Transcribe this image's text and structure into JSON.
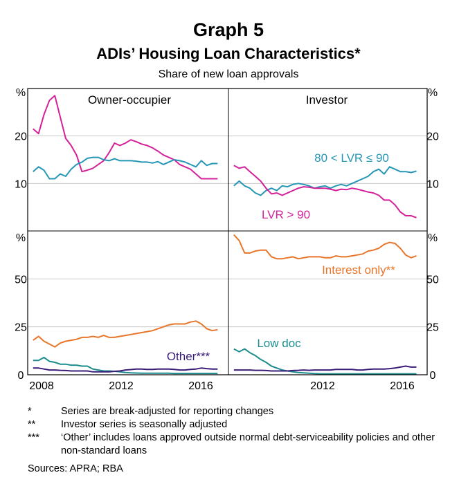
{
  "title": "Graph 5",
  "subtitle": "ADIs’ Housing Loan Characteristics*",
  "subsubtitle": "Share of new loan approvals",
  "unit": "%",
  "x_ticks": [
    "2008",
    "2012",
    "2016"
  ],
  "colors": {
    "magenta": "#d4219a",
    "teal": "#2596b5",
    "orange": "#e8752a",
    "purple": "#3a1c78",
    "darkteal": "#1c8c8c"
  },
  "notes": [
    {
      "mark": "*",
      "text": "Series are break-adjusted for reporting changes"
    },
    {
      "mark": "**",
      "text": "Investor series is seasonally adjusted"
    },
    {
      "mark": "***",
      "text": "‘Other’ includes loans approved outside normal debt-serviceability policies and other non-standard loans"
    }
  ],
  "sources": "Sources:  APRA; RBA",
  "chart_data": [
    {
      "type": "line",
      "title": "Owner-occupier",
      "ylim": [
        0,
        30
      ],
      "y_ticks": [
        10,
        20
      ],
      "x": [
        2007.75,
        2008.0,
        2008.25,
        2008.5,
        2008.75,
        2009.0,
        2009.25,
        2009.5,
        2009.75,
        2010.0,
        2010.25,
        2010.5,
        2010.75,
        2011.0,
        2011.25,
        2011.5,
        2011.75,
        2012.0,
        2012.25,
        2012.5,
        2012.75,
        2013.0,
        2013.25,
        2013.5,
        2013.75,
        2014.0,
        2014.25,
        2014.5,
        2014.75,
        2015.0,
        2015.25,
        2015.5,
        2015.75,
        2016.0,
        2016.25
      ],
      "series": [
        {
          "name": "LVR > 90",
          "color": "#d4219a",
          "values": [
            21.5,
            20.5,
            24.5,
            27.5,
            28.5,
            24.0,
            19.5,
            18.0,
            16.0,
            12.5,
            12.8,
            13.2,
            14.0,
            14.8,
            16.5,
            18.5,
            18.0,
            18.5,
            19.2,
            18.8,
            18.3,
            18.0,
            17.5,
            16.8,
            16.0,
            15.5,
            15.0,
            14.0,
            13.5,
            13.0,
            12.0,
            11.0,
            11.0,
            11.0,
            11.0
          ]
        },
        {
          "name": "80 < LVR ≤ 90",
          "color": "#2596b5",
          "values": [
            12.5,
            13.5,
            12.8,
            11.0,
            11.0,
            12.0,
            11.5,
            13.0,
            14.0,
            14.5,
            15.3,
            15.5,
            15.5,
            15.0,
            14.8,
            15.2,
            14.8,
            14.8,
            14.8,
            14.7,
            14.5,
            14.5,
            14.3,
            14.6,
            14.0,
            14.5,
            15.0,
            14.8,
            14.5,
            14.0,
            13.5,
            14.8,
            13.8,
            14.2,
            14.2
          ]
        }
      ],
      "annotations": []
    },
    {
      "type": "line",
      "title": "Investor",
      "ylim": [
        0,
        30
      ],
      "y_ticks": [
        10,
        20
      ],
      "x": [
        2007.75,
        2008.0,
        2008.25,
        2008.5,
        2008.75,
        2009.0,
        2009.25,
        2009.5,
        2009.75,
        2010.0,
        2010.25,
        2010.5,
        2010.75,
        2011.0,
        2011.25,
        2011.5,
        2011.75,
        2012.0,
        2012.25,
        2012.5,
        2012.75,
        2013.0,
        2013.25,
        2013.5,
        2013.75,
        2014.0,
        2014.25,
        2014.5,
        2014.75,
        2015.0,
        2015.25,
        2015.5,
        2015.75,
        2016.0,
        2016.25
      ],
      "series": [
        {
          "name": "80 < LVR ≤ 90",
          "color": "#2596b5",
          "values": [
            9.5,
            10.5,
            9.5,
            9.0,
            8.0,
            7.5,
            8.5,
            9.0,
            8.5,
            9.5,
            9.3,
            9.8,
            10.0,
            9.8,
            9.5,
            9.0,
            9.3,
            9.5,
            9.0,
            9.5,
            9.8,
            9.5,
            10.0,
            10.5,
            11.0,
            11.5,
            12.5,
            13.0,
            12.0,
            13.5,
            13.0,
            12.5,
            12.5,
            12.3,
            12.6
          ]
        },
        {
          "name": "LVR > 90",
          "color": "#d4219a",
          "values": [
            13.8,
            13.2,
            13.5,
            12.5,
            11.5,
            10.5,
            9.0,
            7.8,
            8.0,
            7.5,
            8.0,
            8.5,
            9.0,
            9.3,
            9.2,
            9.0,
            9.0,
            9.0,
            8.8,
            8.5,
            8.8,
            8.7,
            9.0,
            8.8,
            8.5,
            8.2,
            8.0,
            7.5,
            6.5,
            6.5,
            5.5,
            4.0,
            3.2,
            3.2,
            2.8
          ]
        }
      ],
      "annotations": [
        "80 < LVR ≤ 90",
        "LVR > 90"
      ]
    },
    {
      "type": "line",
      "title": "",
      "ylim": [
        0,
        75
      ],
      "y_ticks": [
        0,
        25,
        50
      ],
      "x": [
        2007.75,
        2008.0,
        2008.25,
        2008.5,
        2008.75,
        2009.0,
        2009.25,
        2009.5,
        2009.75,
        2010.0,
        2010.25,
        2010.5,
        2010.75,
        2011.0,
        2011.25,
        2011.5,
        2011.75,
        2012.0,
        2012.25,
        2012.5,
        2012.75,
        2013.0,
        2013.25,
        2013.5,
        2013.75,
        2014.0,
        2014.25,
        2014.5,
        2014.75,
        2015.0,
        2015.25,
        2015.5,
        2015.75,
        2016.0,
        2016.25
      ],
      "series": [
        {
          "name": "Interest only**",
          "color": "#e8752a",
          "values": [
            18,
            20,
            17.5,
            16,
            14.5,
            16.5,
            17.5,
            18,
            18.5,
            19.5,
            19.5,
            20,
            19.5,
            20.5,
            19.5,
            19.5,
            20,
            20.5,
            21,
            21.5,
            22,
            22.5,
            23,
            24,
            25,
            26,
            26.5,
            26.5,
            26.5,
            27.5,
            28,
            26.5,
            24,
            23,
            23.5
          ]
        },
        {
          "name": "Low doc",
          "color": "#1c8c8c",
          "values": [
            7.5,
            7.5,
            9,
            7,
            6.5,
            5.5,
            5.5,
            5,
            5,
            4.5,
            4.5,
            3,
            2.5,
            2,
            2,
            1.8,
            1.5,
            1.2,
            1,
            0.9,
            0.8,
            0.8,
            0.8,
            0.8,
            0.8,
            0.8,
            0.7,
            0.7,
            0.7,
            0.7,
            0.7,
            0.7,
            0.7,
            0.7,
            0.7
          ]
        },
        {
          "name": "Other***",
          "color": "#3a1c78",
          "values": [
            3.5,
            3.5,
            3,
            2.5,
            2.5,
            2.3,
            2.2,
            2,
            2,
            2,
            2,
            1.5,
            1.5,
            1.5,
            1.5,
            1.8,
            2,
            2.5,
            2.7,
            3,
            3,
            2.8,
            2.8,
            3,
            3,
            3,
            2.8,
            2.5,
            2.5,
            2.8,
            3,
            3.5,
            3.2,
            3,
            3
          ]
        }
      ],
      "annotations": [
        "Other***"
      ]
    },
    {
      "type": "line",
      "title": "",
      "ylim": [
        0,
        75
      ],
      "y_ticks": [
        0,
        25,
        50
      ],
      "x": [
        2007.75,
        2008.0,
        2008.25,
        2008.5,
        2008.75,
        2009.0,
        2009.25,
        2009.5,
        2009.75,
        2010.0,
        2010.25,
        2010.5,
        2010.75,
        2011.0,
        2011.25,
        2011.5,
        2011.75,
        2012.0,
        2012.25,
        2012.5,
        2012.75,
        2013.0,
        2013.25,
        2013.5,
        2013.75,
        2014.0,
        2014.25,
        2014.5,
        2014.75,
        2015.0,
        2015.25,
        2015.5,
        2015.75,
        2016.0,
        2016.25
      ],
      "series": [
        {
          "name": "Interest only**",
          "color": "#e8752a",
          "values": [
            73,
            70,
            63.5,
            63.5,
            64.5,
            65,
            65,
            61.5,
            60.5,
            60.5,
            61,
            61.5,
            60.5,
            61,
            61.5,
            61.5,
            61.5,
            61,
            61,
            62,
            61.5,
            61.5,
            62,
            62.5,
            63,
            64.5,
            65,
            66,
            68,
            69,
            68.5,
            66,
            62.5,
            61,
            62
          ]
        },
        {
          "name": "Low doc",
          "color": "#1c8c8c",
          "values": [
            13.5,
            12,
            13.5,
            11.5,
            10,
            8,
            6.5,
            4.5,
            3.5,
            2.5,
            2,
            1.5,
            1.2,
            1,
            0.8,
            0.6,
            0.5,
            0.5,
            0.5,
            0.5,
            0.5,
            0.5,
            0.5,
            0.5,
            0.5,
            0.5,
            0.5,
            0.5,
            0.5,
            0.5,
            0.5,
            0.5,
            0.5,
            0.5,
            0.5
          ]
        },
        {
          "name": "Other***",
          "color": "#3a1c78",
          "values": [
            2.5,
            2.5,
            2.5,
            2.5,
            2.3,
            2.3,
            2.2,
            2,
            2,
            2,
            2,
            2.2,
            2.3,
            2.5,
            2.3,
            2.5,
            2.5,
            2.5,
            2.5,
            2.8,
            2.8,
            2.8,
            2.8,
            2.5,
            2.5,
            2.8,
            3,
            3,
            3,
            3.2,
            3.5,
            4,
            4.5,
            4,
            4
          ]
        }
      ],
      "annotations": [
        "Interest only**",
        "Low doc"
      ]
    }
  ]
}
